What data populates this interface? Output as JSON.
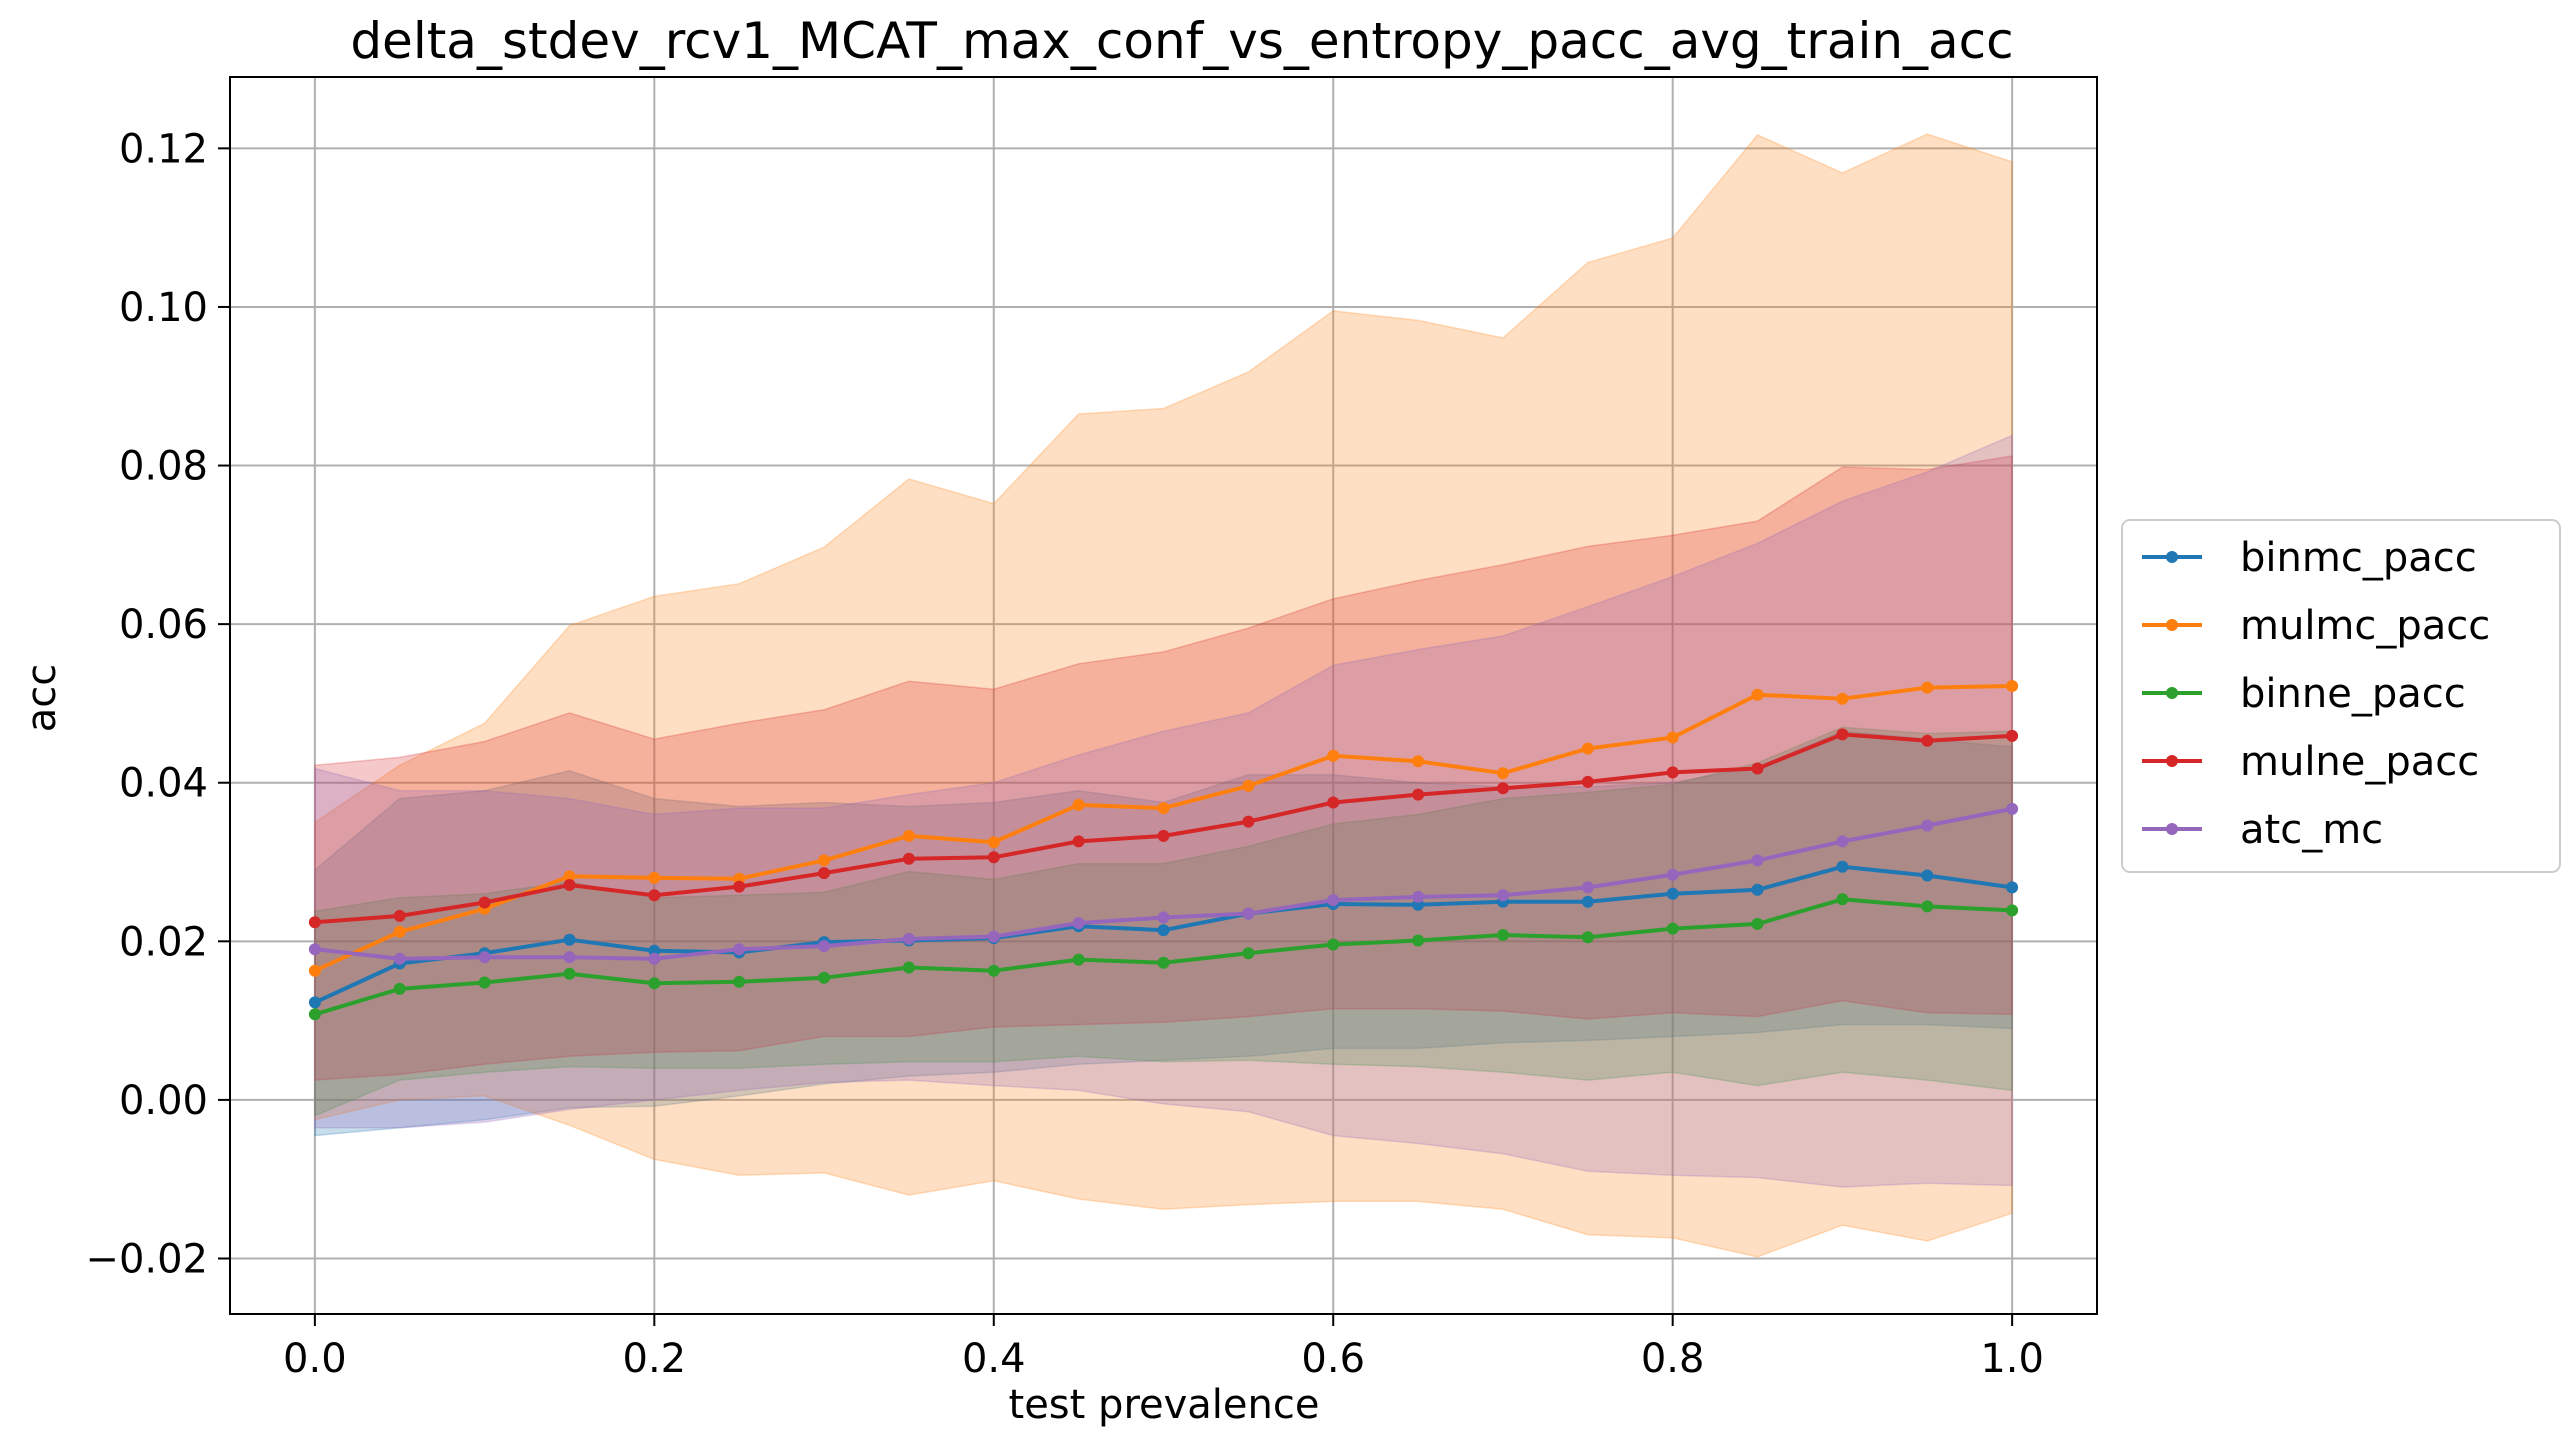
{
  "chart_data": {
    "type": "line",
    "title": "delta_stdev_rcv1_MCAT_max_conf_vs_entropy_pacc_avg_train_acc",
    "xlabel": "test prevalence",
    "ylabel": "acc",
    "xlim": [
      -0.05,
      1.05
    ],
    "ylim": [
      -0.027,
      0.129
    ],
    "xticks": [
      0.0,
      0.2,
      0.4,
      0.6,
      0.8,
      1.0
    ],
    "xtick_labels": [
      "0.0",
      "0.2",
      "0.4",
      "0.6",
      "0.8",
      "1.0"
    ],
    "yticks": [
      -0.02,
      0.0,
      0.02,
      0.04,
      0.06,
      0.08,
      0.1,
      0.12
    ],
    "ytick_labels": [
      "−0.02",
      "0.00",
      "0.02",
      "0.04",
      "0.06",
      "0.08",
      "0.10",
      "0.12"
    ],
    "grid": true,
    "legend_position": "center-right, outside",
    "x": [
      0.0,
      0.05,
      0.1,
      0.15,
      0.2,
      0.25,
      0.3,
      0.35,
      0.4,
      0.45,
      0.5,
      0.55,
      0.6,
      0.65,
      0.7,
      0.75,
      0.8,
      0.85,
      0.9,
      0.95,
      1.0
    ],
    "series": [
      {
        "name": "binmc_pacc",
        "color": "#1f77b4",
        "values": [
          0.0123,
          0.0172,
          0.0185,
          0.0202,
          0.0188,
          0.0186,
          0.0199,
          0.0201,
          0.0204,
          0.0219,
          0.0214,
          0.0235,
          0.0247,
          0.0246,
          0.025,
          0.025,
          0.026,
          0.0265,
          0.0294,
          0.0283,
          0.0268
        ],
        "band_low": [
          -0.0045,
          -0.0035,
          -0.0025,
          -0.001,
          -0.0008,
          0.0005,
          0.002,
          0.003,
          0.0035,
          0.0045,
          0.005,
          0.0055,
          0.0065,
          0.0065,
          0.0072,
          0.0075,
          0.008,
          0.0085,
          0.0095,
          0.0095,
          0.009
        ],
        "band_high": [
          0.029,
          0.038,
          0.039,
          0.0415,
          0.038,
          0.037,
          0.0375,
          0.037,
          0.0375,
          0.039,
          0.0375,
          0.041,
          0.041,
          0.04,
          0.0395,
          0.0395,
          0.04,
          0.042,
          0.0465,
          0.0455,
          0.0445
        ]
      },
      {
        "name": "mulmc_pacc",
        "color": "#ff7f0e",
        "values": [
          0.0163,
          0.0212,
          0.0241,
          0.0282,
          0.028,
          0.0279,
          0.0302,
          0.0333,
          0.0325,
          0.0372,
          0.0368,
          0.0396,
          0.0434,
          0.0427,
          0.0412,
          0.0443,
          0.0457,
          0.0511,
          0.0506,
          0.052,
          0.0522
        ],
        "band_low": [
          -0.0025,
          0.0,
          0.0005,
          -0.0032,
          -0.0075,
          -0.0095,
          -0.0092,
          -0.012,
          -0.0102,
          -0.0125,
          -0.0138,
          -0.0132,
          -0.0128,
          -0.0128,
          -0.0138,
          -0.017,
          -0.0174,
          -0.0198,
          -0.0158,
          -0.0178,
          -0.0143
        ],
        "band_high": [
          0.035,
          0.0422,
          0.0475,
          0.0598,
          0.0635,
          0.0651,
          0.0697,
          0.0783,
          0.0752,
          0.0865,
          0.0872,
          0.0918,
          0.0995,
          0.0983,
          0.0961,
          0.1056,
          0.1087,
          0.1217,
          0.1169,
          0.1218,
          0.1183
        ]
      },
      {
        "name": "binne_pacc",
        "color": "#2ca02c",
        "values": [
          0.0108,
          0.014,
          0.0148,
          0.0159,
          0.0147,
          0.0149,
          0.0154,
          0.0167,
          0.0163,
          0.0177,
          0.0173,
          0.0185,
          0.0196,
          0.0201,
          0.0208,
          0.0205,
          0.0216,
          0.0222,
          0.0253,
          0.0244,
          0.0239
        ],
        "band_low": [
          -0.002,
          0.0025,
          0.0035,
          0.0042,
          0.004,
          0.004,
          0.0045,
          0.0048,
          0.0048,
          0.0055,
          0.0048,
          0.005,
          0.0045,
          0.0042,
          0.0035,
          0.0025,
          0.0035,
          0.0018,
          0.0035,
          0.0025,
          0.0012
        ],
        "band_high": [
          0.0238,
          0.0255,
          0.026,
          0.0275,
          0.0255,
          0.0258,
          0.0262,
          0.0288,
          0.0278,
          0.0298,
          0.0298,
          0.032,
          0.0348,
          0.036,
          0.038,
          0.0388,
          0.0398,
          0.0425,
          0.047,
          0.0462,
          0.0465
        ]
      },
      {
        "name": "mulne_pacc",
        "color": "#d62728",
        "values": [
          0.0224,
          0.0232,
          0.0249,
          0.0271,
          0.0258,
          0.0269,
          0.0286,
          0.0304,
          0.0306,
          0.0326,
          0.0333,
          0.0351,
          0.0375,
          0.0385,
          0.0393,
          0.0401,
          0.0413,
          0.0418,
          0.0461,
          0.0453,
          0.0459
        ],
        "band_low": [
          0.0025,
          0.0032,
          0.0045,
          0.0055,
          0.006,
          0.0062,
          0.008,
          0.008,
          0.0092,
          0.0095,
          0.0098,
          0.0105,
          0.0115,
          0.0115,
          0.0112,
          0.0102,
          0.011,
          0.0105,
          0.0125,
          0.011,
          0.0108
        ],
        "band_high": [
          0.0422,
          0.0432,
          0.0452,
          0.0488,
          0.0455,
          0.0475,
          0.0492,
          0.0528,
          0.0518,
          0.055,
          0.0565,
          0.0595,
          0.0632,
          0.0655,
          0.0675,
          0.0698,
          0.0712,
          0.073,
          0.0798,
          0.0795,
          0.0812
        ]
      },
      {
        "name": "atc_mc",
        "color": "#9467bd",
        "values": [
          0.019,
          0.0178,
          0.018,
          0.018,
          0.0178,
          0.019,
          0.0194,
          0.0203,
          0.0206,
          0.0223,
          0.023,
          0.0235,
          0.0252,
          0.0256,
          0.0258,
          0.0268,
          0.0284,
          0.0302,
          0.0326,
          0.0346,
          0.0367
        ],
        "band_low": [
          -0.0035,
          -0.0035,
          -0.0028,
          -0.0012,
          0.0,
          0.0012,
          0.0022,
          0.0025,
          0.0018,
          0.0012,
          -0.0005,
          -0.0015,
          -0.0045,
          -0.0055,
          -0.0068,
          -0.009,
          -0.0095,
          -0.0098,
          -0.011,
          -0.0105,
          -0.0108
        ],
        "band_high": [
          0.0418,
          0.039,
          0.039,
          0.038,
          0.036,
          0.0368,
          0.0368,
          0.0385,
          0.04,
          0.0435,
          0.0465,
          0.0488,
          0.0548,
          0.0568,
          0.0585,
          0.0622,
          0.066,
          0.0702,
          0.0755,
          0.0792,
          0.0838
        ]
      }
    ]
  }
}
